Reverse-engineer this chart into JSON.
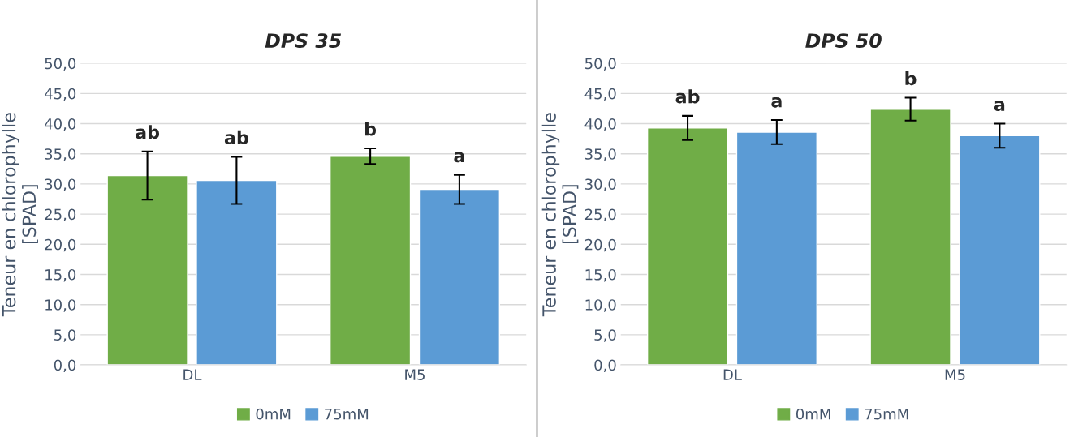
{
  "chart_data": [
    {
      "type": "bar",
      "title": "DPS 35",
      "ylabel": "Teneur en chlorophylle\n[SPAD]",
      "categories": [
        "DL",
        "M5"
      ],
      "series": [
        {
          "name": "0mM",
          "color": "#70ad47",
          "values": [
            31.4,
            34.6
          ],
          "errors": [
            4.0,
            1.3
          ]
        },
        {
          "name": "75mM",
          "color": "#5b9bd5",
          "values": [
            30.6,
            29.1
          ],
          "errors": [
            3.9,
            2.4
          ]
        }
      ],
      "ylim": [
        0,
        50
      ],
      "yticks": [
        {
          "value": 0,
          "label": "0,0"
        },
        {
          "value": 5,
          "label": "5,0"
        },
        {
          "value": 10,
          "label": "10,0"
        },
        {
          "value": 15,
          "label": "15,0"
        },
        {
          "value": 20,
          "label": "20,0"
        },
        {
          "value": 25,
          "label": "25,0"
        },
        {
          "value": 30,
          "label": "30,0"
        },
        {
          "value": 35,
          "label": "35,0"
        },
        {
          "value": 40,
          "label": "40,0"
        },
        {
          "value": 45,
          "label": "45,0"
        },
        {
          "value": 50,
          "label": "50,0"
        }
      ],
      "grid": "y",
      "legend": "bottom",
      "annotations": [
        "ab",
        "ab",
        "b",
        "a"
      ]
    },
    {
      "type": "bar",
      "title": "DPS 50",
      "ylabel": "Teneur en chlorophylle\n[SPAD]",
      "categories": [
        "DL",
        "M5"
      ],
      "series": [
        {
          "name": "0mM",
          "color": "#70ad47",
          "values": [
            39.3,
            42.4
          ],
          "errors": [
            2.0,
            1.9
          ]
        },
        {
          "name": "75mM",
          "color": "#5b9bd5",
          "values": [
            38.6,
            38.0
          ],
          "errors": [
            2.0,
            2.0
          ]
        }
      ],
      "ylim": [
        0,
        50
      ],
      "yticks": [
        {
          "value": 0,
          "label": "0,0"
        },
        {
          "value": 5,
          "label": "5,0"
        },
        {
          "value": 10,
          "label": "10,0"
        },
        {
          "value": 15,
          "label": "15,0"
        },
        {
          "value": 20,
          "label": "20,0"
        },
        {
          "value": 25,
          "label": "25,0"
        },
        {
          "value": 30,
          "label": "30,0"
        },
        {
          "value": 35,
          "label": "35,0"
        },
        {
          "value": 40,
          "label": "40,0"
        },
        {
          "value": 45,
          "label": "45,0"
        },
        {
          "value": 50,
          "label": "50,0"
        }
      ],
      "grid": "y",
      "legend": "bottom",
      "annotations": [
        "ab",
        "a",
        "b",
        "a"
      ]
    }
  ]
}
